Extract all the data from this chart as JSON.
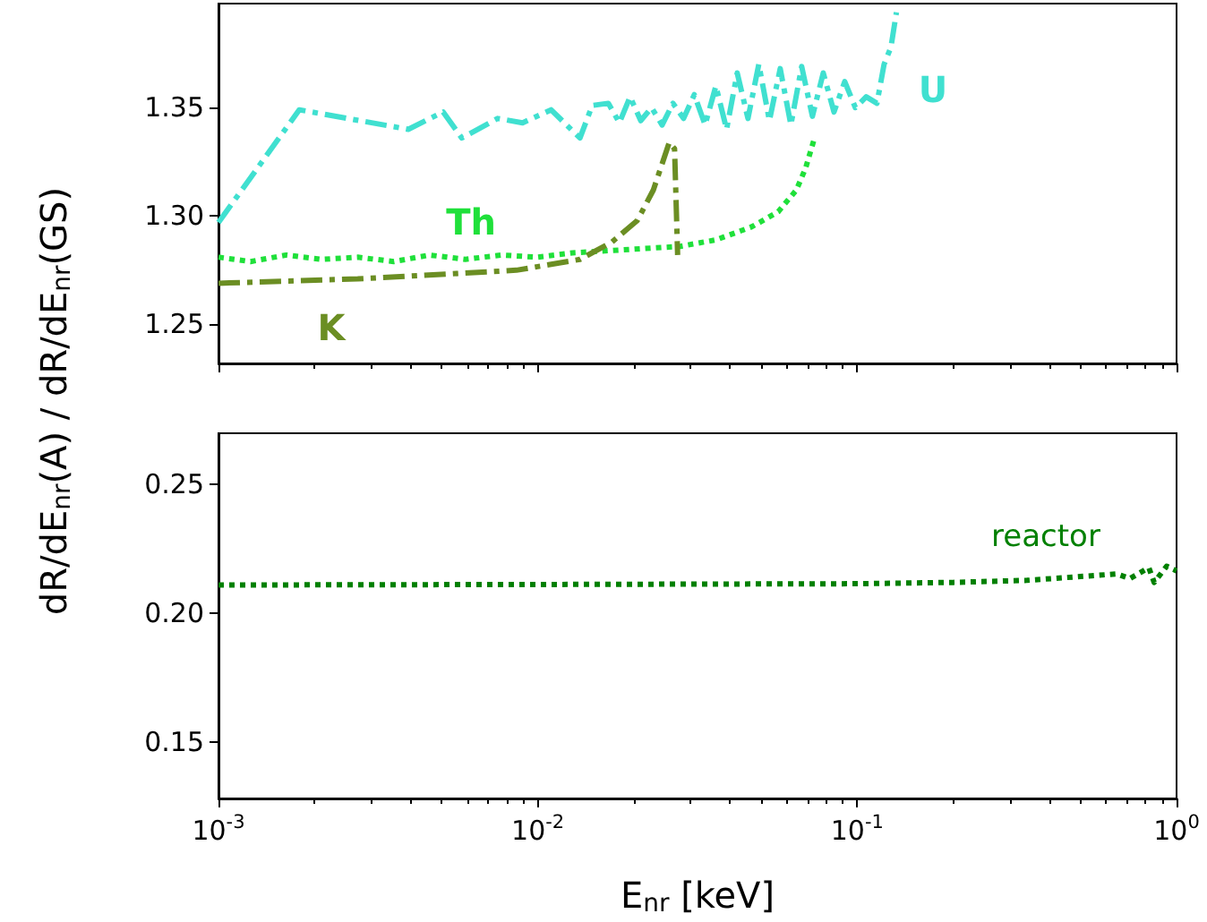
{
  "chart_data": [
    {
      "type": "line",
      "ylabel": "dR/dE$_{nr}$(A) / dR/dE$_{nr}$(GS)",
      "log": "x",
      "xlim": [
        0.001,
        1
      ],
      "xticks": [
        {
          "value": 0.001,
          "label": null
        },
        {
          "value": 0.01,
          "label": null
        },
        {
          "value": 0.1,
          "label": null
        },
        {
          "value": 1,
          "label": null
        }
      ],
      "ylim": [
        1.232,
        1.398
      ],
      "yticks": [
        {
          "value": 1.25,
          "label": "1.25"
        },
        {
          "value": 1.3,
          "label": "1.30"
        },
        {
          "value": 1.35,
          "label": "1.35"
        }
      ],
      "tick_labels": "y",
      "grid": false,
      "legend": false,
      "series": [
        {
          "name": "U",
          "color": "#40e0d0",
          "line_style": "dashed",
          "x": [
            0.001,
            0.00179,
            0.00393,
            0.00505,
            0.00578,
            0.00748,
            0.00896,
            0.011,
            0.01355,
            0.0148,
            0.01663,
            0.018,
            0.01945,
            0.021,
            0.0227,
            0.0245,
            0.0265,
            0.0286,
            0.0309,
            0.0334,
            0.0361,
            0.039,
            0.0421,
            0.0455,
            0.0492,
            0.0531,
            0.0574,
            0.062,
            0.067,
            0.0724,
            0.0783,
            0.0846,
            0.0914,
            0.0987,
            0.1067,
            0.1153,
            0.1214,
            0.1276,
            0.1327
          ],
          "values": [
            1.297,
            1.349,
            1.34,
            1.348,
            1.336,
            1.345,
            1.343,
            1.349,
            1.336,
            1.351,
            1.352,
            1.343,
            1.355,
            1.344,
            1.35,
            1.342,
            1.352,
            1.345,
            1.356,
            1.342,
            1.36,
            1.34,
            1.366,
            1.345,
            1.37,
            1.344,
            1.368,
            1.342,
            1.369,
            1.346,
            1.366,
            1.348,
            1.362,
            1.35,
            1.355,
            1.352,
            1.37,
            1.378,
            1.394
          ]
        },
        {
          "name": "Th",
          "color": "#1fe03a",
          "line_style": "dotted",
          "x": [
            0.001,
            0.00126,
            0.00163,
            0.00211,
            0.00273,
            0.00354,
            0.00458,
            0.00593,
            0.00767,
            0.00993,
            0.01285,
            0.01663,
            0.0215,
            0.0279,
            0.0361,
            0.0467,
            0.0566,
            0.0645,
            0.0689,
            0.0735
          ],
          "values": [
            1.281,
            1.279,
            1.282,
            1.28,
            1.281,
            1.279,
            1.282,
            1.28,
            1.282,
            1.281,
            1.283,
            1.284,
            1.285,
            1.286,
            1.289,
            1.295,
            1.302,
            1.312,
            1.322,
            1.336
          ]
        },
        {
          "name": "K",
          "color": "#6b8e23",
          "line_style": "dashed",
          "x": [
            0.001,
            0.00273,
            0.00857,
            0.01355,
            0.01706,
            0.0205,
            0.023,
            0.0258,
            0.0268,
            0.0274
          ],
          "values": [
            1.269,
            1.271,
            1.275,
            1.28,
            1.288,
            1.298,
            1.312,
            1.334,
            1.331,
            1.282
          ]
        }
      ]
    },
    {
      "type": "line",
      "xlabel": "E$_{nr}$ [keV]",
      "log": "x",
      "xlim": [
        0.001,
        1
      ],
      "xticks": [
        {
          "value": 0.001,
          "label": "10$^{-3}$"
        },
        {
          "value": 0.01,
          "label": "10$^{-2}$"
        },
        {
          "value": 0.1,
          "label": "10$^{-1}$"
        },
        {
          "value": 1,
          "label": "10$^{0}$"
        }
      ],
      "ylim": [
        0.128,
        0.27
      ],
      "yticks": [
        {
          "value": 0.15,
          "label": "0.15"
        },
        {
          "value": 0.2,
          "label": "0.20"
        },
        {
          "value": 0.25,
          "label": "0.25"
        }
      ],
      "grid": false,
      "legend": false,
      "series": [
        {
          "name": "reactor",
          "color": "#008000",
          "line_style": "dotted",
          "x": [
            0.001,
            0.01,
            0.1,
            0.2,
            0.34,
            0.649,
            0.714,
            0.819,
            0.851,
            0.931,
            1
          ],
          "values": [
            0.211,
            0.2112,
            0.2115,
            0.212,
            0.2128,
            0.2153,
            0.2135,
            0.2177,
            0.212,
            0.2183,
            0.2165
          ]
        }
      ]
    }
  ]
}
